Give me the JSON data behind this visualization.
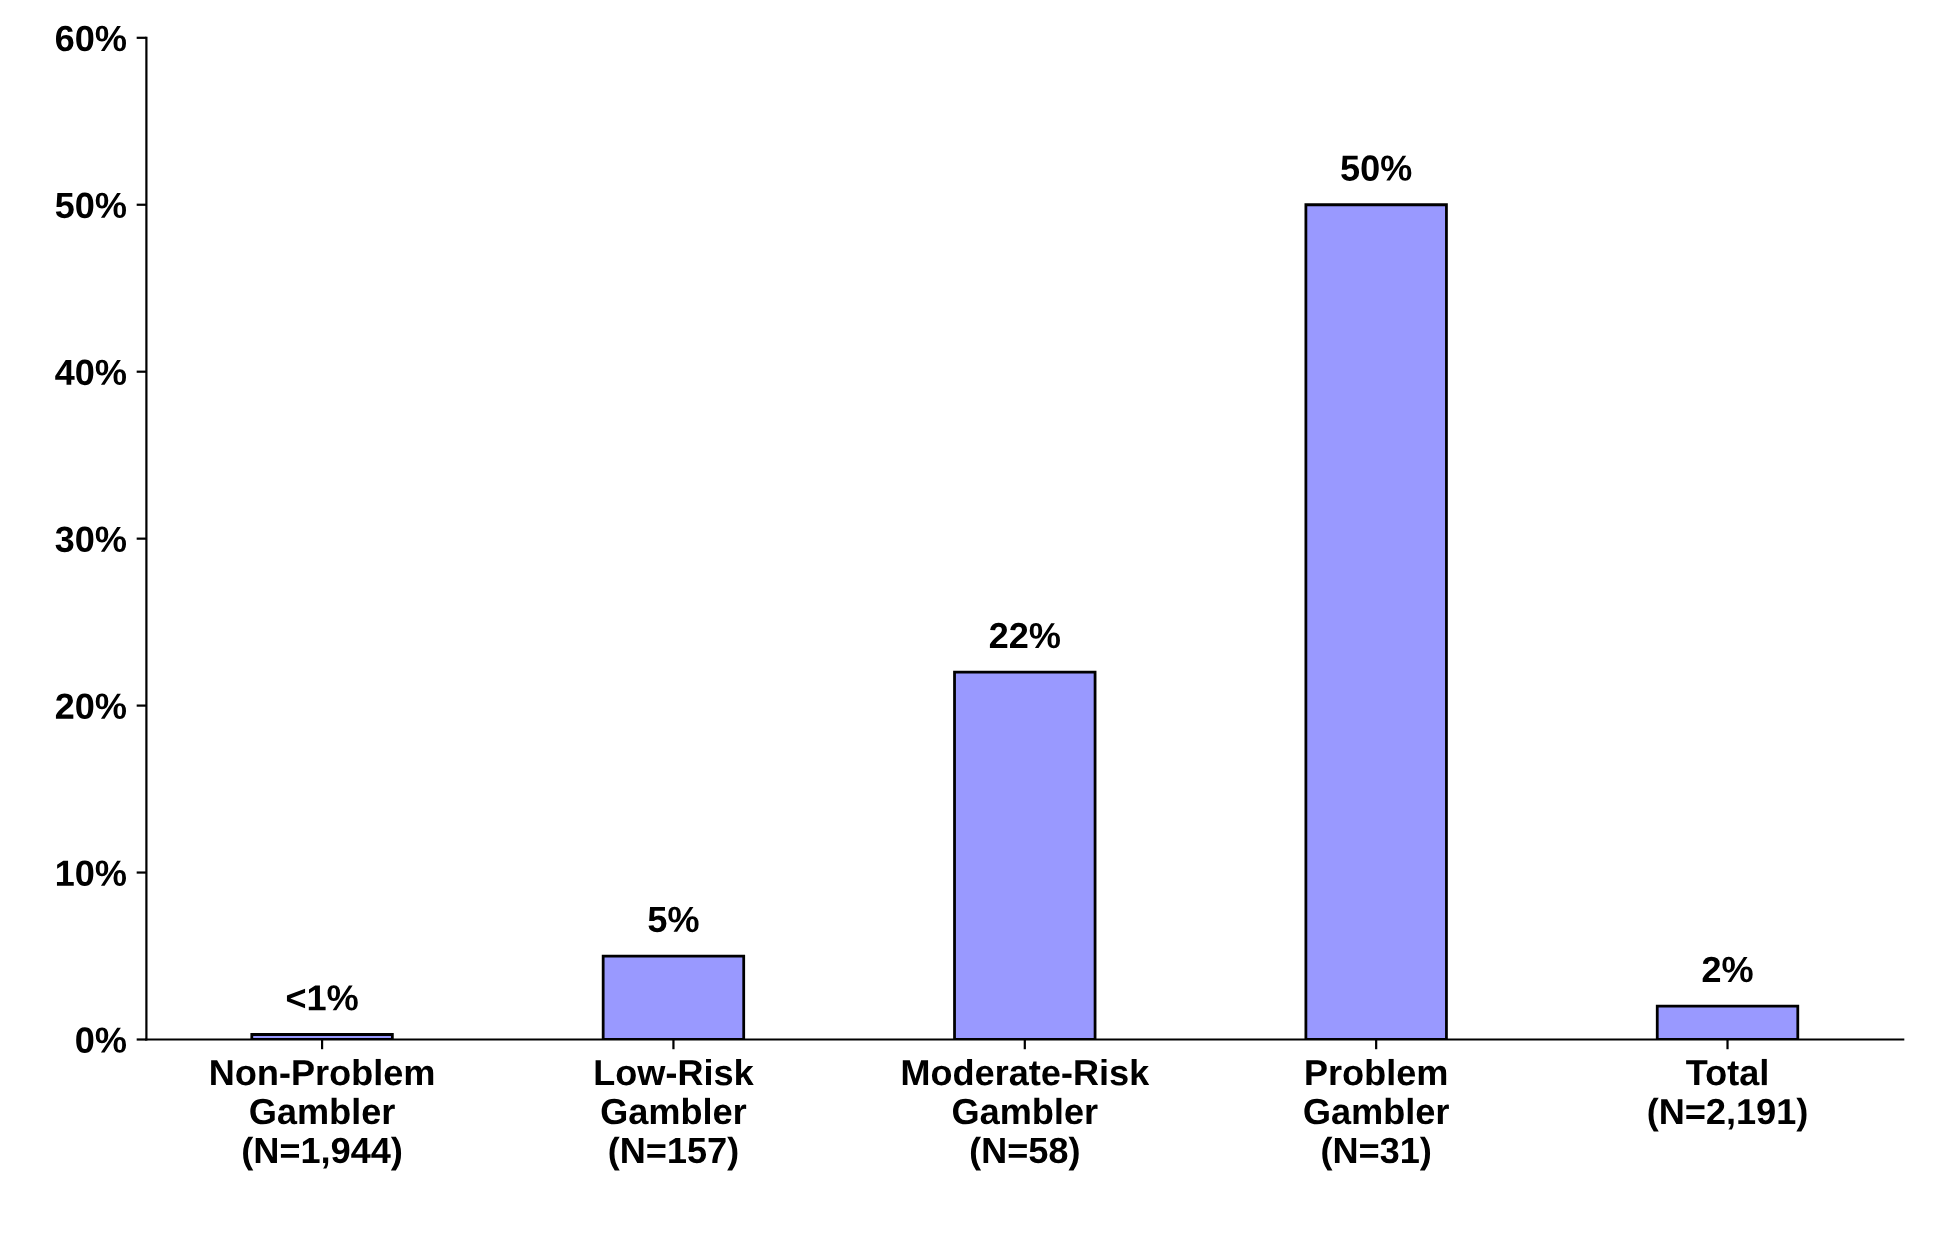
{
  "chart_data": {
    "type": "bar",
    "categories": [
      "Non-Problem\nGambler\n(N=1,944)",
      "Low-Risk\nGambler\n(N=157)",
      "Moderate-Risk\nGambler\n(N=58)",
      "Problem\nGambler\n(N=31)",
      "Total\n(N=2,191)"
    ],
    "values": [
      0.3,
      5,
      22,
      50,
      2
    ],
    "value_labels": [
      "<1%",
      "5%",
      "22%",
      "50%",
      "2%"
    ],
    "color": "#9999ff",
    "ylim": [
      0,
      60
    ],
    "yticks": [
      {
        "value": 0,
        "label": "0%"
      },
      {
        "value": 10,
        "label": "10%"
      },
      {
        "value": 20,
        "label": "20%"
      },
      {
        "value": 30,
        "label": "30%"
      },
      {
        "value": 40,
        "label": "40%"
      },
      {
        "value": 50,
        "label": "50%"
      },
      {
        "value": 60,
        "label": "60%"
      }
    ],
    "grid": false
  }
}
